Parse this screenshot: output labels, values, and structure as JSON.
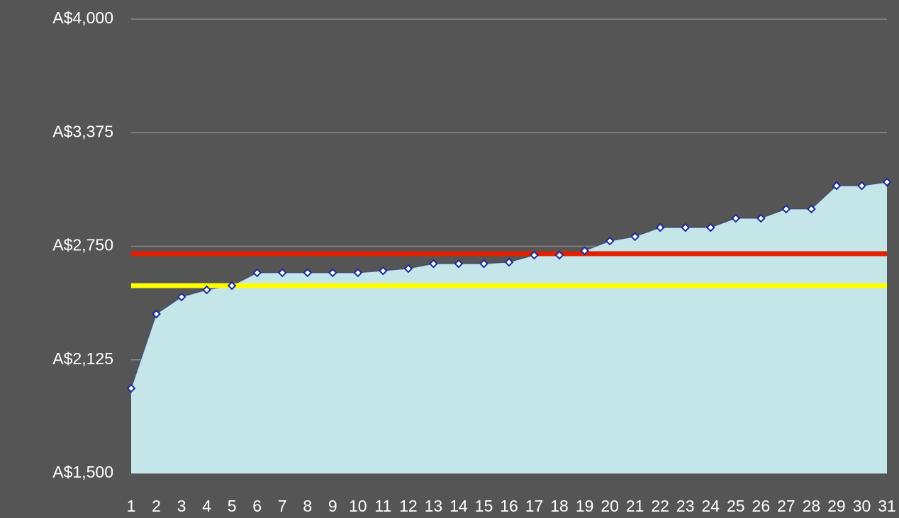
{
  "chart_data": {
    "type": "area",
    "categories": [
      "1",
      "2",
      "3",
      "4",
      "5",
      "6",
      "7",
      "8",
      "9",
      "10",
      "11",
      "12",
      "13",
      "14",
      "15",
      "16",
      "17",
      "18",
      "19",
      "20",
      "21",
      "22",
      "23",
      "24",
      "25",
      "26",
      "27",
      "28",
      "29",
      "30",
      "31"
    ],
    "series": [
      {
        "color": "#c4e6e8",
        "line_color": "#1f2d8a",
        "marker_color": "#1a2a9a",
        "values": [
          1968,
          2377,
          2471,
          2510,
          2533,
          2604,
          2604,
          2604,
          2604,
          2604,
          2615,
          2627,
          2654,
          2654,
          2654,
          2662,
          2701,
          2701,
          2725,
          2779,
          2803,
          2853,
          2853,
          2853,
          2904,
          2904,
          2955,
          2955,
          3083,
          3083,
          3103
        ]
      }
    ],
    "reference_lines": [
      {
        "value": 2709,
        "color": "#e02000"
      },
      {
        "value": 2533,
        "color": "#ffff00"
      }
    ],
    "ylim": [
      1500,
      4000
    ],
    "yticks": [
      {
        "value": 1500,
        "label": "A$1,500"
      },
      {
        "value": 2125,
        "label": "A$2,125"
      },
      {
        "value": 2750,
        "label": "A$2,750"
      },
      {
        "value": 3375,
        "label": "A$3,375"
      },
      {
        "value": 4000,
        "label": "A$4,000"
      }
    ],
    "grid": true
  }
}
